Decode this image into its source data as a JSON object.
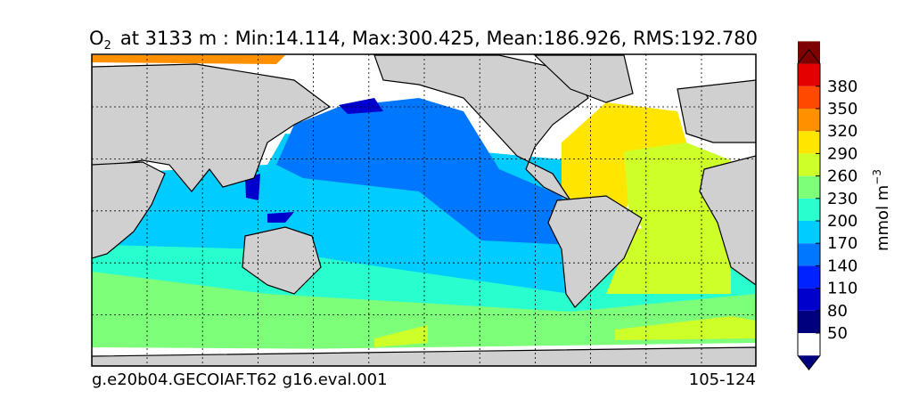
{
  "title": {
    "species": "O",
    "subscript": "2",
    "text": "at 3133 m : Min:14.114, Max:300.425, Mean:186.926, RMS:192.780"
  },
  "footer": {
    "left": "g.e20b04.GECOIAF.T62 g16.eval.001",
    "right": "105-124"
  },
  "colorbar": {
    "unit": "mmol m",
    "unit_exponent": "−3",
    "ticks": [
      50,
      80,
      110,
      140,
      170,
      200,
      230,
      260,
      290,
      320,
      350,
      380
    ],
    "colors": [
      "#00007f",
      "#0000cd",
      "#0022ff",
      "#0077ff",
      "#00ccff",
      "#29ffce",
      "#7dff7a",
      "#ceff29",
      "#ffe500",
      "#ff9100",
      "#ff4800",
      "#e50000",
      "#7f0000"
    ]
  }
}
